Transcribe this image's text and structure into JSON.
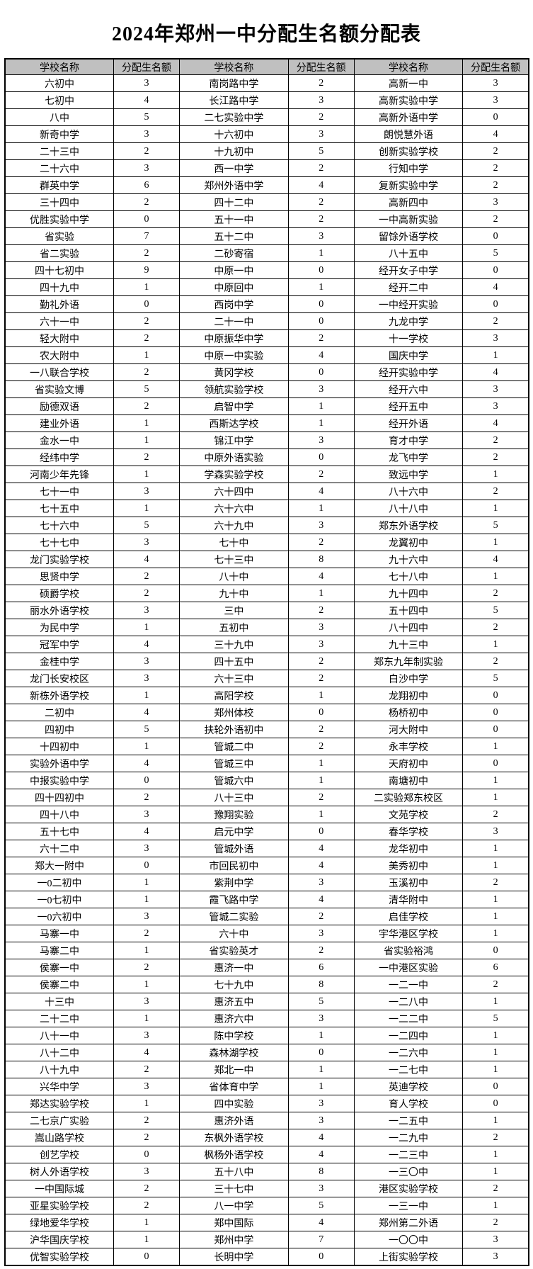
{
  "title": "2024年郑州一中分配生名额分配表",
  "colors": {
    "page_bg": "#ffffff",
    "header_bg": "#c0c0c0",
    "border": "#000000",
    "text": "#000000"
  },
  "table": {
    "headers": [
      "学校名称",
      "分配生名额",
      "学校名称",
      "分配生名额",
      "学校名称",
      "分配生名额"
    ],
    "rows": [
      [
        "六初中",
        3,
        "南岗路中学",
        2,
        "高新一中",
        3
      ],
      [
        "七初中",
        4,
        "长江路中学",
        3,
        "高新实验中学",
        3
      ],
      [
        "八中",
        5,
        "二七实验中学",
        2,
        "高新外语中学",
        0
      ],
      [
        "新奇中学",
        3,
        "十六初中",
        3,
        "朗悦慧外语",
        4
      ],
      [
        "二十三中",
        2,
        "十九初中",
        5,
        "创新实验学校",
        2
      ],
      [
        "二十六中",
        3,
        "西一中学",
        2,
        "行知中学",
        2
      ],
      [
        "群英中学",
        6,
        "郑州外语中学",
        4,
        "复新实验中学",
        2
      ],
      [
        "三十四中",
        2,
        "四十二中",
        2,
        "高新四中",
        3
      ],
      [
        "优胜实验中学",
        0,
        "五十一中",
        2,
        "一中高新实验",
        2
      ],
      [
        "省实验",
        7,
        "五十二中",
        3,
        "留馀外语学校",
        0
      ],
      [
        "省二实验",
        2,
        "二砂寄宿",
        1,
        "八十五中",
        5
      ],
      [
        "四十七初中",
        9,
        "中原一中",
        0,
        "经开女子中学",
        0
      ],
      [
        "四十九中",
        1,
        "中原回中",
        1,
        "经开二中",
        4
      ],
      [
        "勤礼外语",
        0,
        "西岗中学",
        0,
        "一中经开实验",
        0
      ],
      [
        "六十一中",
        2,
        "二十一中",
        0,
        "九龙中学",
        2
      ],
      [
        "轻大附中",
        2,
        "中原振华中学",
        2,
        "十一学校",
        3
      ],
      [
        "农大附中",
        1,
        "中原一中实验",
        4,
        "国庆中学",
        1
      ],
      [
        "一八联合学校",
        2,
        "黄冈学校",
        0,
        "经开实验中学",
        4
      ],
      [
        "省实验文博",
        5,
        "领航实验学校",
        3,
        "经开六中",
        3
      ],
      [
        "励德双语",
        2,
        "启智中学",
        1,
        "经开五中",
        3
      ],
      [
        "建业外语",
        1,
        "西斯达学校",
        1,
        "经开外语",
        4
      ],
      [
        "金水一中",
        1,
        "锦江中学",
        3,
        "育才中学",
        2
      ],
      [
        "经纬中学",
        2,
        "中原外语实验",
        0,
        "龙飞中学",
        2
      ],
      [
        "河南少年先锋",
        1,
        "学森实验学校",
        2,
        "致远中学",
        1
      ],
      [
        "七十一中",
        3,
        "六十四中",
        4,
        "八十六中",
        2
      ],
      [
        "七十五中",
        1,
        "六十六中",
        1,
        "八十八中",
        1
      ],
      [
        "七十六中",
        5,
        "六十九中",
        3,
        "郑东外语学校",
        5
      ],
      [
        "七十七中",
        3,
        "七十中",
        2,
        "龙翼初中",
        1
      ],
      [
        "龙门实验学校",
        4,
        "七十三中",
        8,
        "九十六中",
        4
      ],
      [
        "思贤中学",
        2,
        "八十中",
        4,
        "七十八中",
        1
      ],
      [
        "硕爵学校",
        2,
        "九十中",
        1,
        "九十四中",
        2
      ],
      [
        "丽水外语学校",
        3,
        "三中",
        2,
        "五十四中",
        5
      ],
      [
        "为民中学",
        1,
        "五初中",
        3,
        "八十四中",
        2
      ],
      [
        "冠军中学",
        4,
        "三十九中",
        3,
        "九十三中",
        1
      ],
      [
        "金桂中学",
        3,
        "四十五中",
        2,
        "郑东九年制实验",
        2
      ],
      [
        "龙门长安校区",
        3,
        "六十三中",
        2,
        "白沙中学",
        5
      ],
      [
        "新栋外语学校",
        1,
        "高阳学校",
        1,
        "龙翔初中",
        0
      ],
      [
        "二初中",
        4,
        "郑州体校",
        0,
        "杨桥初中",
        0
      ],
      [
        "四初中",
        5,
        "扶轮外语初中",
        2,
        "河大附中",
        0
      ],
      [
        "十四初中",
        1,
        "管城二中",
        2,
        "永丰学校",
        1
      ],
      [
        "实验外语中学",
        4,
        "管城三中",
        1,
        "天府初中",
        0
      ],
      [
        "中报实验中学",
        0,
        "管城六中",
        1,
        "南塘初中",
        1
      ],
      [
        "四十四初中",
        2,
        "八十三中",
        2,
        "二实验郑东校区",
        1
      ],
      [
        "四十八中",
        3,
        "豫翔实验",
        1,
        "文苑学校",
        2
      ],
      [
        "五十七中",
        4,
        "启元中学",
        0,
        "春华学校",
        3
      ],
      [
        "六十二中",
        3,
        "管城外语",
        4,
        "龙华初中",
        1
      ],
      [
        "郑大一附中",
        0,
        "市回民初中",
        4,
        "美秀初中",
        1
      ],
      [
        "一0二初中",
        1,
        "紫荆中学",
        3,
        "玉溪初中",
        2
      ],
      [
        "一0七初中",
        1,
        "霞飞路中学",
        4,
        "清华附中",
        1
      ],
      [
        "一0六初中",
        3,
        "管城二实验",
        2,
        "启佳学校",
        1
      ],
      [
        "马寨一中",
        2,
        "六十中",
        3,
        "宇华港区学校",
        1
      ],
      [
        "马寨二中",
        1,
        "省实验英才",
        2,
        "省实验裕鸿",
        0
      ],
      [
        "侯寨一中",
        2,
        "惠济一中",
        6,
        "一中港区实验",
        6
      ],
      [
        "侯寨二中",
        1,
        "七十九中",
        8,
        "一二一中",
        2
      ],
      [
        "十三中",
        3,
        "惠济五中",
        5,
        "一二八中",
        1
      ],
      [
        "二十二中",
        1,
        "惠济六中",
        3,
        "一二二中",
        5
      ],
      [
        "八十一中",
        3,
        "陈中学校",
        1,
        "一二四中",
        1
      ],
      [
        "八十二中",
        4,
        "森林湖学校",
        0,
        "一二六中",
        1
      ],
      [
        "八十九中",
        2,
        "郑北一中",
        1,
        "一二七中",
        1
      ],
      [
        "兴华中学",
        3,
        "省体育中学",
        1,
        "英迪学校",
        0
      ],
      [
        "郑达实验学校",
        1,
        "四中实验",
        3,
        "育人学校",
        0
      ],
      [
        "二七京广实验",
        2,
        "惠济外语",
        3,
        "一二五中",
        1
      ],
      [
        "嵩山路学校",
        2,
        "东枫外语学校",
        4,
        "一二九中",
        2
      ],
      [
        "创艺学校",
        0,
        "枫杨外语学校",
        4,
        "一二三中",
        1
      ],
      [
        "树人外语学校",
        3,
        "五十八中",
        8,
        "一三〇中",
        1
      ],
      [
        "一中国际城",
        2,
        "三十七中",
        3,
        "港区实验学校",
        2
      ],
      [
        "亚星实验学校",
        2,
        "八一中学",
        5,
        "一三一中",
        1
      ],
      [
        "绿地爱华学校",
        1,
        "郑中国际",
        4,
        "郑州第二外语",
        2
      ],
      [
        "沪华国庆学校",
        1,
        "郑州中学",
        7,
        "一〇〇中",
        3
      ],
      [
        "优智实验学校",
        0,
        "长明中学",
        0,
        "上街实验学校",
        3
      ]
    ]
  }
}
